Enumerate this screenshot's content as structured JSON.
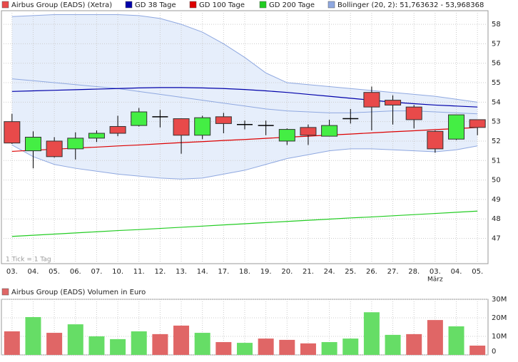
{
  "chart_data": [
    {
      "type": "candlestick",
      "categories": [
        "03.",
        "04.",
        "05.",
        "06.",
        "07.",
        "10.",
        "11.",
        "12.",
        "13.",
        "14.",
        "17.",
        "18.",
        "19.",
        "20.",
        "21.",
        "24.",
        "25.",
        "26.",
        "27.",
        "28.",
        "03.",
        "04.",
        "05."
      ],
      "x_sublabels": [
        null,
        null,
        null,
        null,
        null,
        null,
        null,
        null,
        null,
        null,
        null,
        null,
        null,
        null,
        null,
        null,
        null,
        null,
        null,
        null,
        "März",
        null,
        null
      ],
      "price": {
        "name": "Airbus Group (EADS) (Xetra)",
        "up_color": "#44ee44",
        "down_color": "#e84a4a",
        "open": [
          53.0,
          51.5,
          52.0,
          51.6,
          52.15,
          52.75,
          52.8,
          53.25,
          53.15,
          52.3,
          53.25,
          52.85,
          52.8,
          52.0,
          52.7,
          52.25,
          53.15,
          54.5,
          54.1,
          53.75,
          52.5,
          52.1,
          53.1
        ],
        "high": [
          53.4,
          52.5,
          52.2,
          52.45,
          52.55,
          53.3,
          53.7,
          53.6,
          53.15,
          53.3,
          53.45,
          53.05,
          53.05,
          52.65,
          52.85,
          53.1,
          53.65,
          54.8,
          54.35,
          53.85,
          52.55,
          53.35,
          53.1
        ],
        "low": [
          51.85,
          50.6,
          51.15,
          51.05,
          51.95,
          52.25,
          52.75,
          52.7,
          51.35,
          52.1,
          52.4,
          52.6,
          52.3,
          51.8,
          51.8,
          52.25,
          52.9,
          52.55,
          52.85,
          52.65,
          51.4,
          52.05,
          52.3
        ],
        "close": [
          51.9,
          52.2,
          51.2,
          52.15,
          52.4,
          52.4,
          53.5,
          53.25,
          52.3,
          53.2,
          52.9,
          52.85,
          52.8,
          52.6,
          52.3,
          52.8,
          53.15,
          53.75,
          53.85,
          53.1,
          51.6,
          53.35,
          52.7
        ]
      },
      "series": [
        {
          "name": "GD 38 Tage",
          "color": "#0000aa",
          "values": [
            54.55,
            54.58,
            54.61,
            54.64,
            54.67,
            54.7,
            54.73,
            54.75,
            54.75,
            54.73,
            54.7,
            54.65,
            54.58,
            54.5,
            54.4,
            54.3,
            54.2,
            54.1,
            54.0,
            53.92,
            53.85,
            53.8,
            53.75
          ]
        },
        {
          "name": "GD 100 Tage",
          "color": "#dd0000",
          "values": [
            51.47,
            51.53,
            51.58,
            51.64,
            51.69,
            51.75,
            51.8,
            51.86,
            51.92,
            51.97,
            52.03,
            52.08,
            52.14,
            52.2,
            52.25,
            52.31,
            52.36,
            52.42,
            52.48,
            52.53,
            52.59,
            52.64,
            52.7
          ]
        },
        {
          "name": "GD 200 Tage",
          "color": "#22cc22",
          "values": [
            47.1,
            47.16,
            47.22,
            47.28,
            47.34,
            47.4,
            47.45,
            47.51,
            47.57,
            47.63,
            47.69,
            47.75,
            47.81,
            47.87,
            47.93,
            47.99,
            48.05,
            48.1,
            48.16,
            48.22,
            48.28,
            48.34,
            48.4
          ]
        }
      ],
      "bollinger": {
        "name": "Bollinger (20, 2): 51,763632 - 53,968368",
        "color": "#8fa8e0",
        "fill": "#e6eefb",
        "upper": [
          58.4,
          58.45,
          58.5,
          58.5,
          58.5,
          58.5,
          58.45,
          58.3,
          58.0,
          57.6,
          57.0,
          56.3,
          55.5,
          55.0,
          54.9,
          54.8,
          54.7,
          54.6,
          54.5,
          54.4,
          54.3,
          54.15,
          54.0
        ],
        "middle": [
          55.2,
          55.1,
          55.0,
          54.9,
          54.8,
          54.7,
          54.55,
          54.4,
          54.25,
          54.1,
          53.95,
          53.8,
          53.65,
          53.55,
          53.5,
          53.45,
          53.45,
          53.5,
          53.55,
          53.55,
          53.5,
          53.45,
          53.4
        ],
        "lower": [
          51.8,
          51.2,
          50.8,
          50.6,
          50.45,
          50.3,
          50.2,
          50.1,
          50.05,
          50.1,
          50.3,
          50.5,
          50.8,
          51.1,
          51.3,
          51.5,
          51.6,
          51.6,
          51.55,
          51.5,
          51.45,
          51.55,
          51.75
        ]
      },
      "note": "1 Tick = 1 Tag",
      "ylim": [
        45.7,
        58.7
      ],
      "yticks": [
        47,
        48,
        49,
        50,
        51,
        52,
        53,
        54,
        55,
        56,
        57,
        58
      ],
      "grid": true
    },
    {
      "type": "bar",
      "title": "Airbus Group (EADS) Volumen in Euro",
      "legend_color": "#e06666",
      "values": [
        12700000,
        20400000,
        11900000,
        16500000,
        10000000,
        8500000,
        12700000,
        11200000,
        15800000,
        11900000,
        6900000,
        6500000,
        8800000,
        8100000,
        6200000,
        6900000,
        8800000,
        23000000,
        10800000,
        11200000,
        18800000,
        15400000,
        5000000
      ],
      "colors": [
        "#e06666",
        "#66dd66",
        "#e06666",
        "#66dd66",
        "#66dd66",
        "#66dd66",
        "#66dd66",
        "#e06666",
        "#e06666",
        "#66dd66",
        "#e06666",
        "#66dd66",
        "#e06666",
        "#e06666",
        "#e06666",
        "#66dd66",
        "#66dd66",
        "#66dd66",
        "#66dd66",
        "#e06666",
        "#e06666",
        "#66dd66",
        "#e06666"
      ],
      "ylim": [
        0,
        30000000
      ],
      "yticks": [
        0,
        {
          "value": 10000000,
          "label": "10M"
        },
        {
          "value": 20000000,
          "label": "20M"
        },
        {
          "value": 30000000,
          "label": "30M"
        }
      ],
      "grid": true
    }
  ]
}
